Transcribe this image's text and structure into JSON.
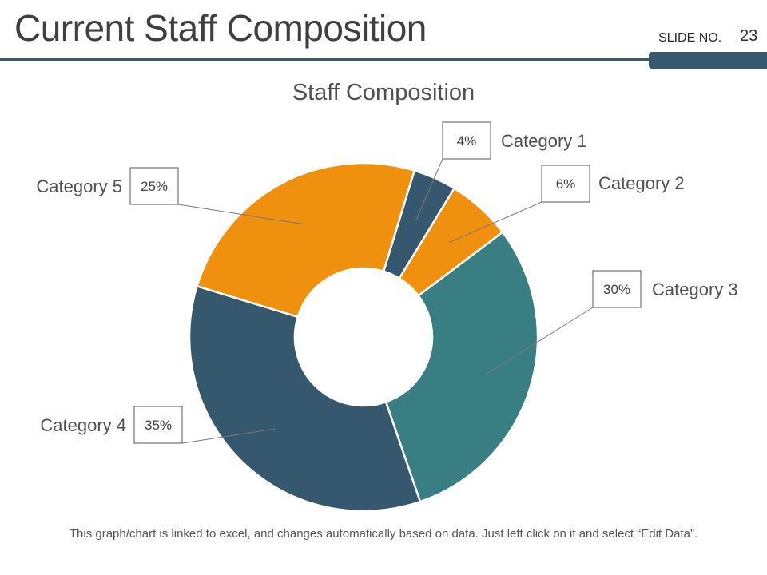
{
  "header": {
    "title": "Current Staff Composition",
    "slide_label": "SLIDE NO.",
    "slide_number": "23"
  },
  "footer": {
    "note": "This graph/chart is linked to excel, and changes automatically based on data. Just left click on it and select “Edit Data”."
  },
  "chart_data": {
    "type": "pie",
    "variant": "donut",
    "title": "Staff Composition",
    "categories": [
      "Category 1",
      "Category 2",
      "Category 3",
      "Category 4",
      "Category 5"
    ],
    "values": [
      4,
      6,
      30,
      35,
      25
    ],
    "value_labels": [
      "4%",
      "6%",
      "30%",
      "35%",
      "25%"
    ],
    "colors": [
      "#36586f",
      "#f0900f",
      "#387e83",
      "#36586f",
      "#f0900f"
    ]
  }
}
